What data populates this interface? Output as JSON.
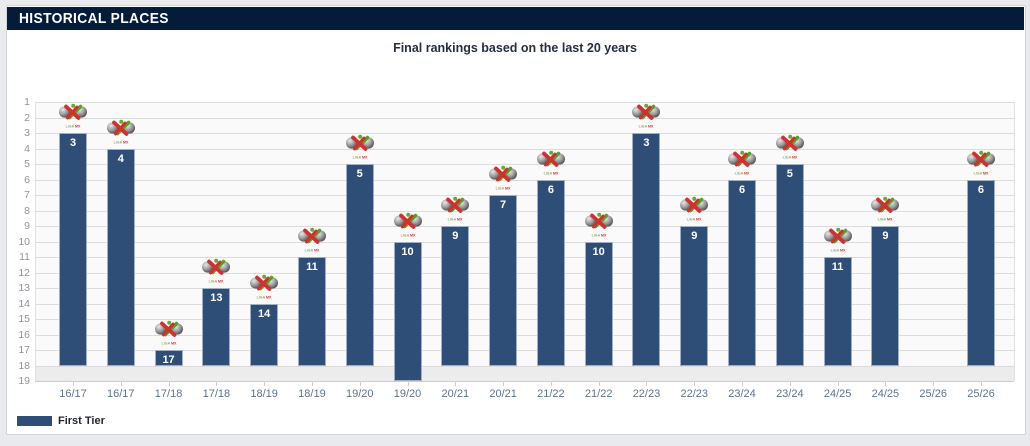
{
  "header": {
    "title": "HISTORICAL PLACES"
  },
  "chart_data": {
    "type": "bar",
    "title": "Final rankings based on the last 20 years",
    "categories": [
      "16/17",
      "16/17",
      "17/18",
      "17/18",
      "18/19",
      "18/19",
      "19/20",
      "19/20",
      "20/21",
      "20/21",
      "21/22",
      "21/22",
      "22/23",
      "22/23",
      "23/24",
      "23/24",
      "24/25",
      "24/25",
      "25/26",
      "25/26"
    ],
    "values": [
      3,
      4,
      17,
      13,
      14,
      11,
      5,
      10,
      9,
      7,
      6,
      10,
      3,
      9,
      6,
      5,
      11,
      9,
      null,
      6
    ],
    "bar_base": [
      18,
      18,
      18,
      18,
      18,
      18,
      18,
      19,
      18,
      18,
      18,
      18,
      18,
      18,
      18,
      18,
      18,
      18,
      null,
      18
    ],
    "y_ticks": [
      1,
      2,
      3,
      4,
      5,
      6,
      7,
      8,
      9,
      10,
      11,
      12,
      13,
      14,
      15,
      16,
      17,
      18,
      19
    ],
    "ylim": [
      1,
      19
    ],
    "y_axis_inverted": true,
    "grid": true,
    "xlabel": "",
    "ylabel": "",
    "marker_icon": "liga-mx-logo",
    "bar_color": "#2e4e78",
    "legend_position": "bottom-left",
    "legend": [
      {
        "label": "First Tier",
        "color": "#2e4e78"
      }
    ]
  },
  "colors": {
    "header_bg": "#041c3a",
    "band": "#ececec",
    "gridline": "#dcdcdc",
    "x_label": "#5d7391",
    "y_label": "#8e939b"
  }
}
